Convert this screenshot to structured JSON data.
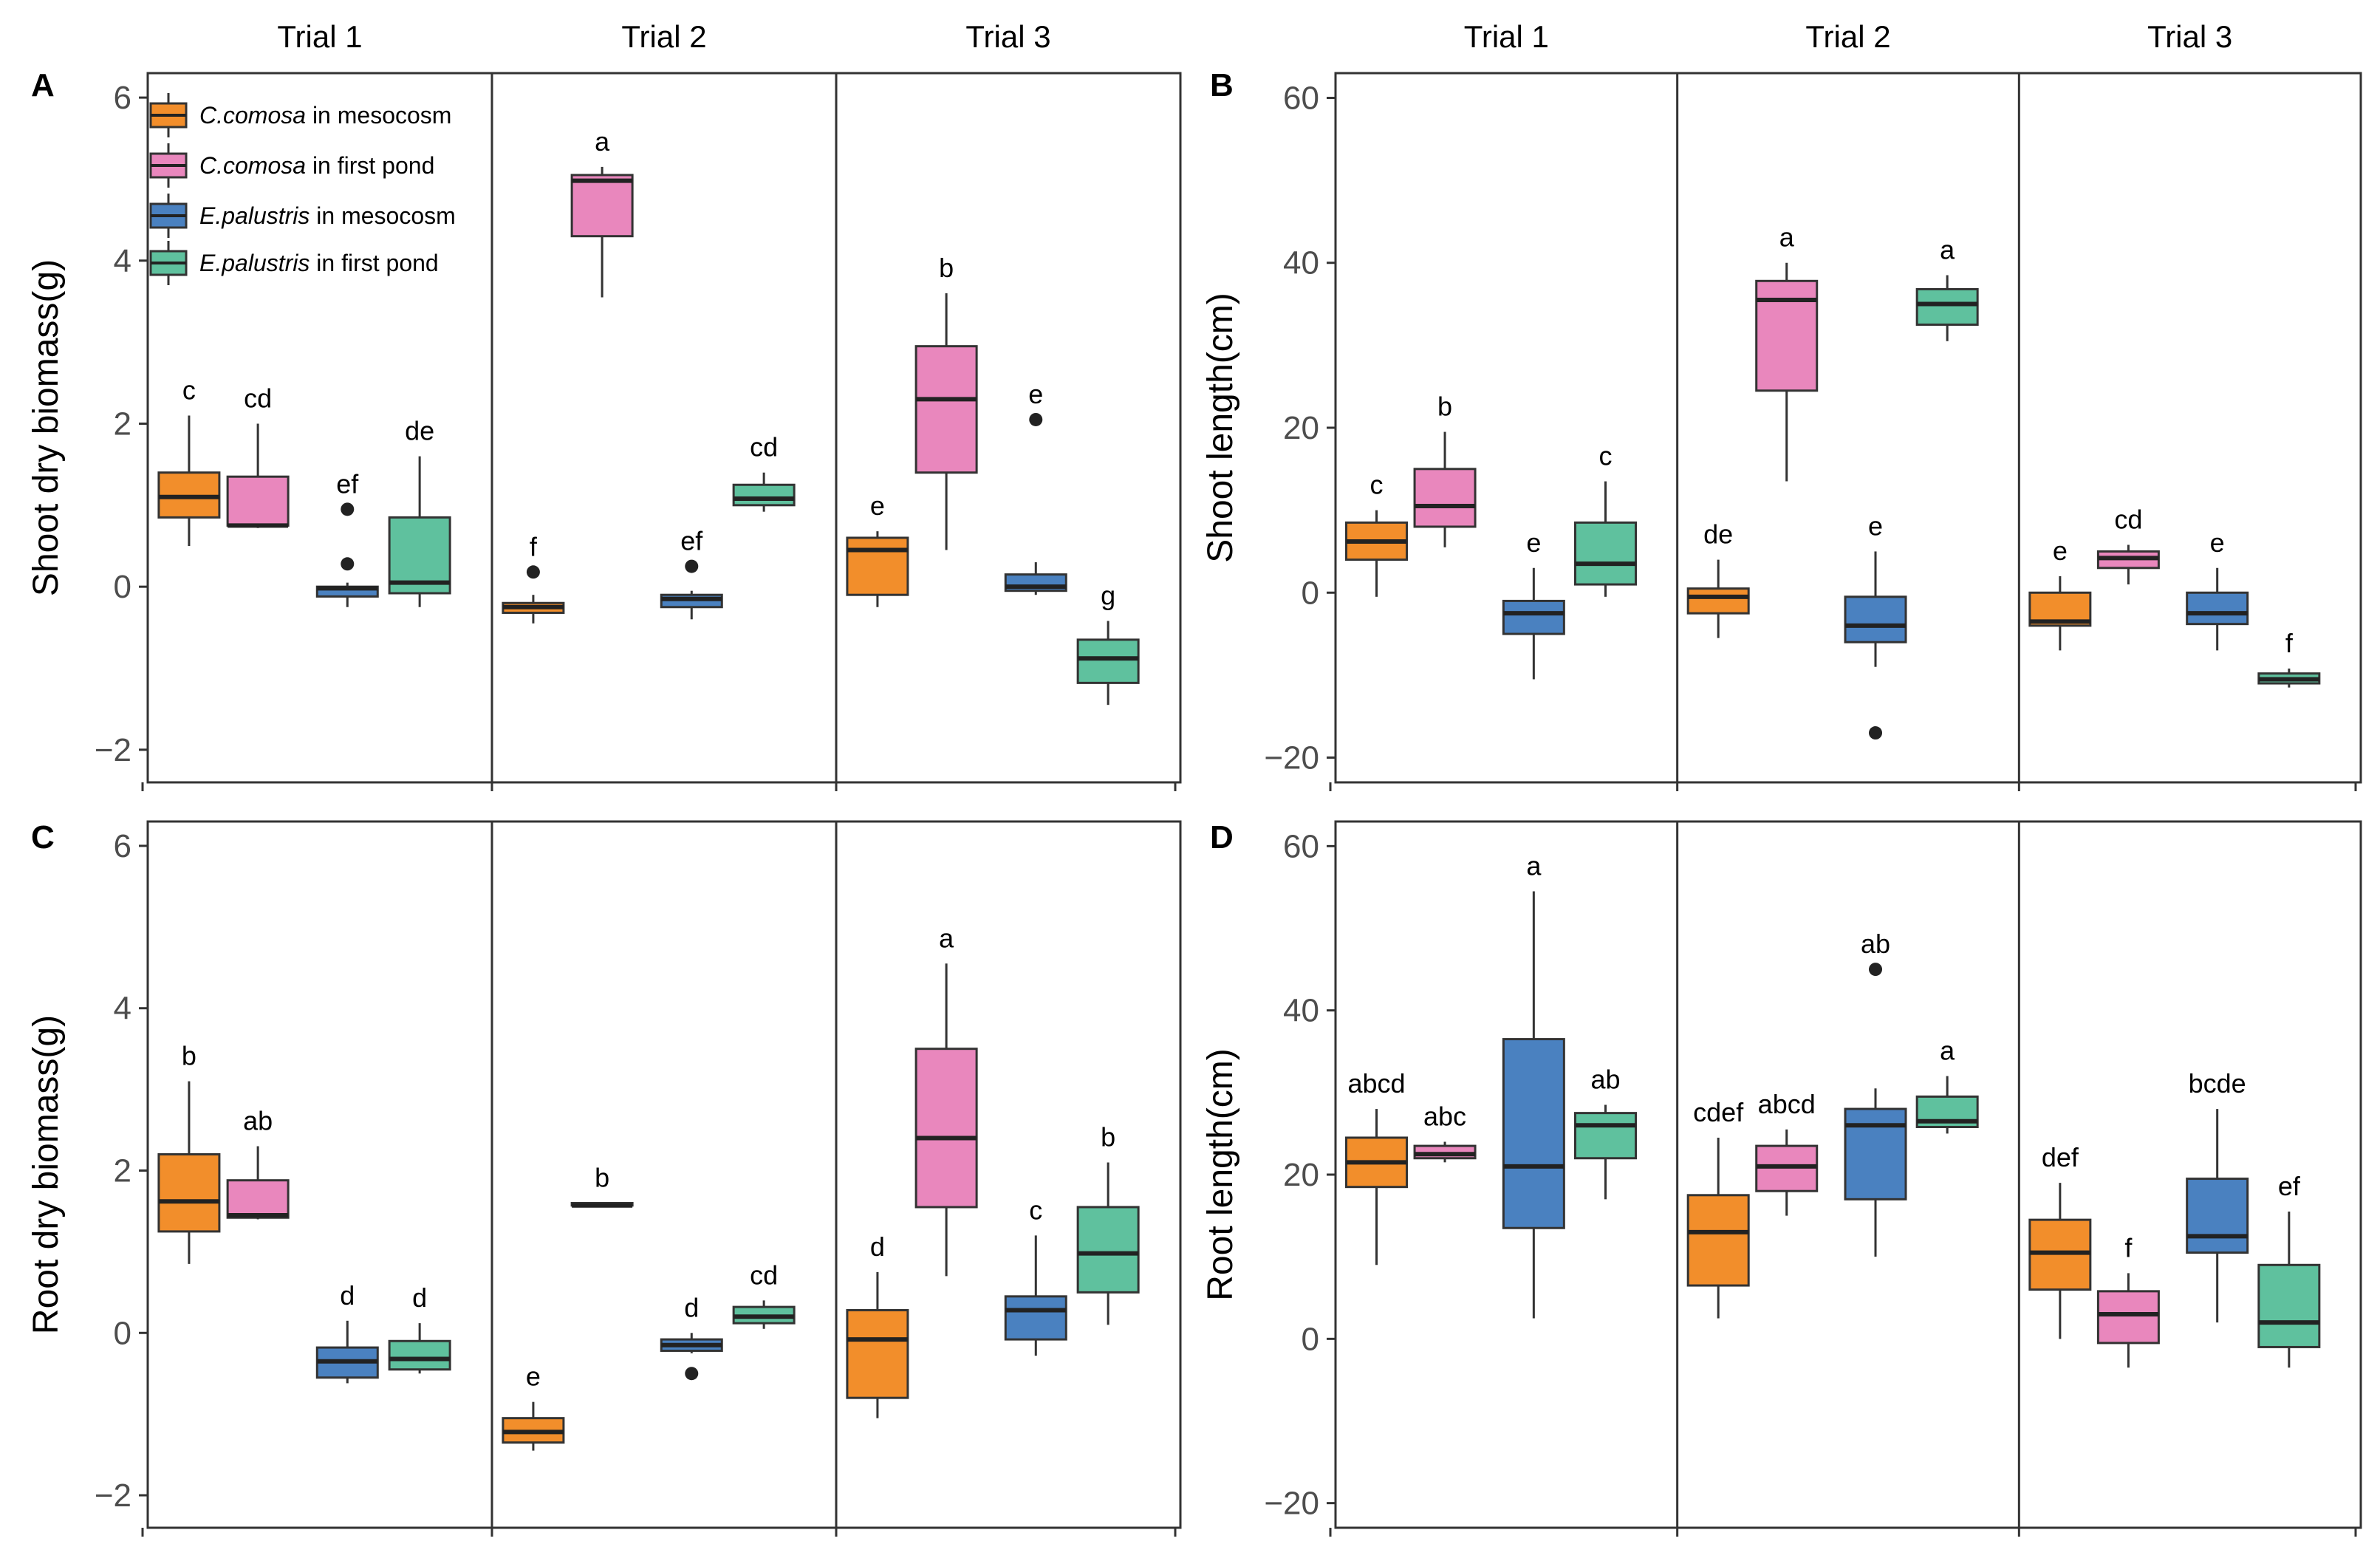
{
  "chart_data": [
    {
      "panel": "A",
      "type": "boxplot",
      "ylabel": "Shoot dry biomass(g)",
      "ylim": [
        -2.4,
        6.3
      ],
      "yticks": [
        -2,
        0,
        2,
        4,
        6
      ],
      "facets": [
        "Trial 1",
        "Trial 2",
        "Trial 3"
      ],
      "legend": {
        "placement": "top-left",
        "entries": [
          {
            "species": "C.comosa",
            "suffix": " in mesocosm",
            "color": "#F28E2B"
          },
          {
            "species": "C.comosa",
            "suffix": " in first pond",
            "color": "#E987BD"
          },
          {
            "species": "E.palustris",
            "suffix": " in mesocosm",
            "color": "#4A81C0"
          },
          {
            "species": "E.palustris",
            "suffix": " in first pond",
            "color": "#5FC19E"
          }
        ]
      },
      "boxes": [
        {
          "facet": "Trial 1",
          "group": "C.comosa in mesocosm",
          "min": 0.5,
          "q1": 0.85,
          "median": 1.1,
          "q3": 1.4,
          "max": 2.1,
          "outliers": [],
          "letter": "c"
        },
        {
          "facet": "Trial 1",
          "group": "C.comosa in first pond",
          "min": 0.72,
          "q1": 0.75,
          "median": 0.75,
          "q3": 1.35,
          "max": 2.0,
          "outliers": [],
          "letter": "cd"
        },
        {
          "facet": "Trial 1",
          "group": "E.palustris in mesocosm",
          "min": -0.25,
          "q1": -0.12,
          "median": -0.02,
          "q3": 0.0,
          "max": 0.05,
          "outliers": [
            0.95,
            0.28
          ],
          "letter": "ef"
        },
        {
          "facet": "Trial 1",
          "group": "E.palustris in first pond",
          "min": -0.25,
          "q1": -0.08,
          "median": 0.05,
          "q3": 0.85,
          "max": 1.6,
          "outliers": [],
          "letter": "de"
        },
        {
          "facet": "Trial 2",
          "group": "C.comosa in mesocosm",
          "min": -0.45,
          "q1": -0.32,
          "median": -0.25,
          "q3": -0.2,
          "max": -0.1,
          "outliers": [
            0.18
          ],
          "letter": "f"
        },
        {
          "facet": "Trial 2",
          "group": "C.comosa in first pond",
          "min": 3.55,
          "q1": 4.3,
          "median": 4.98,
          "q3": 5.05,
          "max": 5.15,
          "outliers": [],
          "letter": "a"
        },
        {
          "facet": "Trial 2",
          "group": "E.palustris in mesocosm",
          "min": -0.4,
          "q1": -0.25,
          "median": -0.15,
          "q3": -0.1,
          "max": -0.05,
          "outliers": [
            0.25
          ],
          "letter": "ef"
        },
        {
          "facet": "Trial 2",
          "group": "E.palustris in first pond",
          "min": 0.92,
          "q1": 1.0,
          "median": 1.08,
          "q3": 1.25,
          "max": 1.4,
          "outliers": [],
          "letter": "cd"
        },
        {
          "facet": "Trial 3",
          "group": "C.comosa in mesocosm",
          "min": -0.25,
          "q1": -0.1,
          "median": 0.45,
          "q3": 0.6,
          "max": 0.68,
          "outliers": [],
          "letter": "e"
        },
        {
          "facet": "Trial 3",
          "group": "C.comosa in first pond",
          "min": 0.45,
          "q1": 1.4,
          "median": 2.3,
          "q3": 2.95,
          "max": 3.6,
          "outliers": [],
          "letter": "b"
        },
        {
          "facet": "Trial 3",
          "group": "E.palustris in mesocosm",
          "min": -0.1,
          "q1": -0.05,
          "median": 0.0,
          "q3": 0.15,
          "max": 0.3,
          "outliers": [
            2.05
          ],
          "letter": "e"
        },
        {
          "facet": "Trial 3",
          "group": "E.palustris in first pond",
          "min": -1.45,
          "q1": -1.18,
          "median": -0.88,
          "q3": -0.65,
          "max": -0.42,
          "outliers": [],
          "letter": "g"
        }
      ]
    },
    {
      "panel": "B",
      "type": "boxplot",
      "ylabel": "Shoot length(cm)",
      "ylim": [
        -23,
        63
      ],
      "yticks": [
        -20,
        0,
        20,
        40,
        60
      ],
      "facets": [
        "Trial 1",
        "Trial 2",
        "Trial 3"
      ],
      "boxes": [
        {
          "facet": "Trial 1",
          "group": "C.comosa in mesocosm",
          "min": -0.5,
          "q1": 4.0,
          "median": 6.2,
          "q3": 8.5,
          "max": 10.0,
          "outliers": [],
          "letter": "c"
        },
        {
          "facet": "Trial 1",
          "group": "C.comosa in first pond",
          "min": 5.5,
          "q1": 8.0,
          "median": 10.5,
          "q3": 15.0,
          "max": 19.5,
          "outliers": [],
          "letter": "b"
        },
        {
          "facet": "Trial 1",
          "group": "E.palustris in mesocosm",
          "min": -10.5,
          "q1": -5.0,
          "median": -2.5,
          "q3": -1.0,
          "max": 3.0,
          "outliers": [],
          "letter": "e"
        },
        {
          "facet": "Trial 1",
          "group": "E.palustris in first pond",
          "min": -0.5,
          "q1": 1.0,
          "median": 3.5,
          "q3": 8.5,
          "max": 13.5,
          "outliers": [],
          "letter": "c"
        },
        {
          "facet": "Trial 2",
          "group": "C.comosa in mesocosm",
          "min": -5.5,
          "q1": -2.5,
          "median": -0.5,
          "q3": 0.5,
          "max": 4.0,
          "outliers": [],
          "letter": "de"
        },
        {
          "facet": "Trial 2",
          "group": "C.comosa in first pond",
          "min": 13.5,
          "q1": 24.5,
          "median": 35.5,
          "q3": 37.8,
          "max": 40.0,
          "outliers": [],
          "letter": "a"
        },
        {
          "facet": "Trial 2",
          "group": "E.palustris in mesocosm",
          "min": -9.0,
          "q1": -6.0,
          "median": -4.0,
          "q3": -0.5,
          "max": 5.0,
          "outliers": [
            -17.0
          ],
          "letter": "e"
        },
        {
          "facet": "Trial 2",
          "group": "E.palustris in first pond",
          "min": 30.5,
          "q1": 32.5,
          "median": 35.0,
          "q3": 36.8,
          "max": 38.5,
          "outliers": [],
          "letter": "a"
        },
        {
          "facet": "Trial 3",
          "group": "C.comosa in mesocosm",
          "min": -7.0,
          "q1": -4.0,
          "median": -3.5,
          "q3": 0.0,
          "max": 2.0,
          "outliers": [],
          "letter": "e"
        },
        {
          "facet": "Trial 3",
          "group": "C.comosa in first pond",
          "min": 1.0,
          "q1": 3.0,
          "median": 4.2,
          "q3": 5.0,
          "max": 5.8,
          "outliers": [],
          "letter": "cd"
        },
        {
          "facet": "Trial 3",
          "group": "E.palustris in mesocosm",
          "min": -7.0,
          "q1": -3.8,
          "median": -2.5,
          "q3": 0.0,
          "max": 3.0,
          "outliers": [],
          "letter": "e"
        },
        {
          "facet": "Trial 3",
          "group": "E.palustris in first pond",
          "min": -11.5,
          "q1": -11.0,
          "median": -10.5,
          "q3": -9.8,
          "max": -9.2,
          "outliers": [],
          "letter": "f"
        }
      ]
    },
    {
      "panel": "C",
      "type": "boxplot",
      "ylabel": "Root dry biomass(g)",
      "ylim": [
        -2.4,
        6.3
      ],
      "yticks": [
        -2,
        0,
        2,
        4,
        6
      ],
      "facets": [
        "Trial 1",
        "Trial 2",
        "Trial 3"
      ],
      "boxes": [
        {
          "facet": "Trial 1",
          "group": "C.comosa in mesocosm",
          "min": 0.85,
          "q1": 1.25,
          "median": 1.62,
          "q3": 2.2,
          "max": 3.1,
          "outliers": [],
          "letter": "b"
        },
        {
          "facet": "Trial 1",
          "group": "C.comosa in first pond",
          "min": 1.4,
          "q1": 1.42,
          "median": 1.45,
          "q3": 1.88,
          "max": 2.3,
          "outliers": [],
          "letter": "ab"
        },
        {
          "facet": "Trial 1",
          "group": "E.palustris in mesocosm",
          "min": -0.62,
          "q1": -0.55,
          "median": -0.35,
          "q3": -0.18,
          "max": 0.15,
          "outliers": [],
          "letter": "d"
        },
        {
          "facet": "Trial 1",
          "group": "E.palustris in first pond",
          "min": -0.5,
          "q1": -0.45,
          "median": -0.32,
          "q3": -0.1,
          "max": 0.12,
          "outliers": [],
          "letter": "d"
        },
        {
          "facet": "Trial 2",
          "group": "C.comosa in mesocosm",
          "min": -1.45,
          "q1": -1.35,
          "median": -1.22,
          "q3": -1.05,
          "max": -0.85,
          "outliers": [],
          "letter": "e"
        },
        {
          "facet": "Trial 2",
          "group": "C.comosa in first pond",
          "min": 1.57,
          "q1": 1.57,
          "median": 1.57,
          "q3": 1.6,
          "max": 1.6,
          "outliers": [],
          "letter": "b"
        },
        {
          "facet": "Trial 2",
          "group": "E.palustris in mesocosm",
          "min": -0.25,
          "q1": -0.22,
          "median": -0.15,
          "q3": -0.08,
          "max": 0.0,
          "outliers": [
            -0.5
          ],
          "letter": "d"
        },
        {
          "facet": "Trial 2",
          "group": "E.palustris in first pond",
          "min": 0.05,
          "q1": 0.12,
          "median": 0.2,
          "q3": 0.32,
          "max": 0.4,
          "outliers": [],
          "letter": "cd"
        },
        {
          "facet": "Trial 3",
          "group": "C.comosa in mesocosm",
          "min": -1.05,
          "q1": -0.8,
          "median": -0.08,
          "q3": 0.28,
          "max": 0.75,
          "outliers": [],
          "letter": "d"
        },
        {
          "facet": "Trial 3",
          "group": "C.comosa in first pond",
          "min": 0.7,
          "q1": 1.55,
          "median": 2.4,
          "q3": 3.5,
          "max": 4.55,
          "outliers": [],
          "letter": "a"
        },
        {
          "facet": "Trial 3",
          "group": "E.palustris in mesocosm",
          "min": -0.28,
          "q1": -0.08,
          "median": 0.28,
          "q3": 0.45,
          "max": 1.2,
          "outliers": [],
          "letter": "c"
        },
        {
          "facet": "Trial 3",
          "group": "E.palustris in first pond",
          "min": 0.1,
          "q1": 0.5,
          "median": 0.98,
          "q3": 1.55,
          "max": 2.1,
          "outliers": [],
          "letter": "b"
        }
      ]
    },
    {
      "panel": "D",
      "type": "boxplot",
      "ylabel": "Root length(cm)",
      "ylim": [
        -23,
        63
      ],
      "yticks": [
        -20,
        0,
        20,
        40,
        60
      ],
      "facets": [
        "Trial 1",
        "Trial 2",
        "Trial 3"
      ],
      "boxes": [
        {
          "facet": "Trial 1",
          "group": "C.comosa in mesocosm",
          "min": 9.0,
          "q1": 18.5,
          "median": 21.5,
          "q3": 24.5,
          "max": 28.0,
          "outliers": [],
          "letter": "abcd"
        },
        {
          "facet": "Trial 1",
          "group": "C.comosa in first pond",
          "min": 21.5,
          "q1": 22.0,
          "median": 22.5,
          "q3": 23.5,
          "max": 24.0,
          "outliers": [],
          "letter": "abc"
        },
        {
          "facet": "Trial 1",
          "group": "E.palustris in mesocosm",
          "min": 2.5,
          "q1": 13.5,
          "median": 21.0,
          "q3": 36.5,
          "max": 54.5,
          "outliers": [],
          "letter": "a"
        },
        {
          "facet": "Trial 1",
          "group": "E.palustris in first pond",
          "min": 17.0,
          "q1": 22.0,
          "median": 26.0,
          "q3": 27.5,
          "max": 28.5,
          "outliers": [],
          "letter": "ab"
        },
        {
          "facet": "Trial 2",
          "group": "C.comosa in mesocosm",
          "min": 2.5,
          "q1": 6.5,
          "median": 13.0,
          "q3": 17.5,
          "max": 24.5,
          "outliers": [],
          "letter": "cdef"
        },
        {
          "facet": "Trial 2",
          "group": "C.comosa in first pond",
          "min": 15.0,
          "q1": 18.0,
          "median": 21.0,
          "q3": 23.5,
          "max": 25.5,
          "outliers": [],
          "letter": "abcd"
        },
        {
          "facet": "Trial 2",
          "group": "E.palustris in mesocosm",
          "min": 10.0,
          "q1": 17.0,
          "median": 26.0,
          "q3": 28.0,
          "max": 30.5,
          "outliers": [
            45.0
          ],
          "letter": "ab"
        },
        {
          "facet": "Trial 2",
          "group": "E.palustris in first pond",
          "min": 25.0,
          "q1": 25.8,
          "median": 26.5,
          "q3": 29.5,
          "max": 32.0,
          "outliers": [],
          "letter": "a"
        },
        {
          "facet": "Trial 3",
          "group": "C.comosa in mesocosm",
          "min": 0.0,
          "q1": 6.0,
          "median": 10.5,
          "q3": 14.5,
          "max": 19.0,
          "outliers": [],
          "letter": "def"
        },
        {
          "facet": "Trial 3",
          "group": "C.comosa in first pond",
          "min": -3.5,
          "q1": -0.5,
          "median": 3.0,
          "q3": 5.8,
          "max": 8.0,
          "outliers": [],
          "letter": "f"
        },
        {
          "facet": "Trial 3",
          "group": "E.palustris in mesocosm",
          "min": 2.0,
          "q1": 10.5,
          "median": 12.5,
          "q3": 19.5,
          "max": 28.0,
          "outliers": [],
          "letter": "bcde"
        },
        {
          "facet": "Trial 3",
          "group": "E.palustris in first pond",
          "min": -3.5,
          "q1": -1.0,
          "median": 2.0,
          "q3": 9.0,
          "max": 15.5,
          "outliers": [],
          "letter": "ef"
        }
      ]
    }
  ]
}
